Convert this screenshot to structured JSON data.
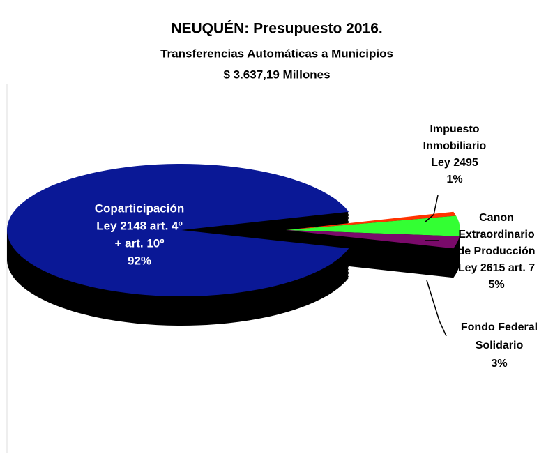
{
  "chart_data": {
    "type": "pie",
    "title": "NEUQUÉN: Presupuesto 2016.",
    "subtitle": [
      "Transferencias  Automáticas a Municipios",
      "$ 3.637,19  Millones"
    ],
    "categories": [
      [
        "Coparticipación",
        "Ley 2148 art. 4º",
        "+ art. 10º"
      ],
      [
        "Impuesto",
        "Inmobiliario",
        "Ley 2495"
      ],
      [
        "Canon",
        "Extraordinario",
        "de Producción",
        "Ley 2615 art. 7"
      ],
      [
        "Fondo Federal",
        "Solidario"
      ]
    ],
    "values": [
      92,
      1,
      5,
      3
    ],
    "value_labels": [
      "92%",
      "1%",
      "5%",
      "3%"
    ],
    "colors": [
      "#0a1896",
      "#ff3300",
      "#33ff33",
      "#7a0a6a"
    ]
  }
}
